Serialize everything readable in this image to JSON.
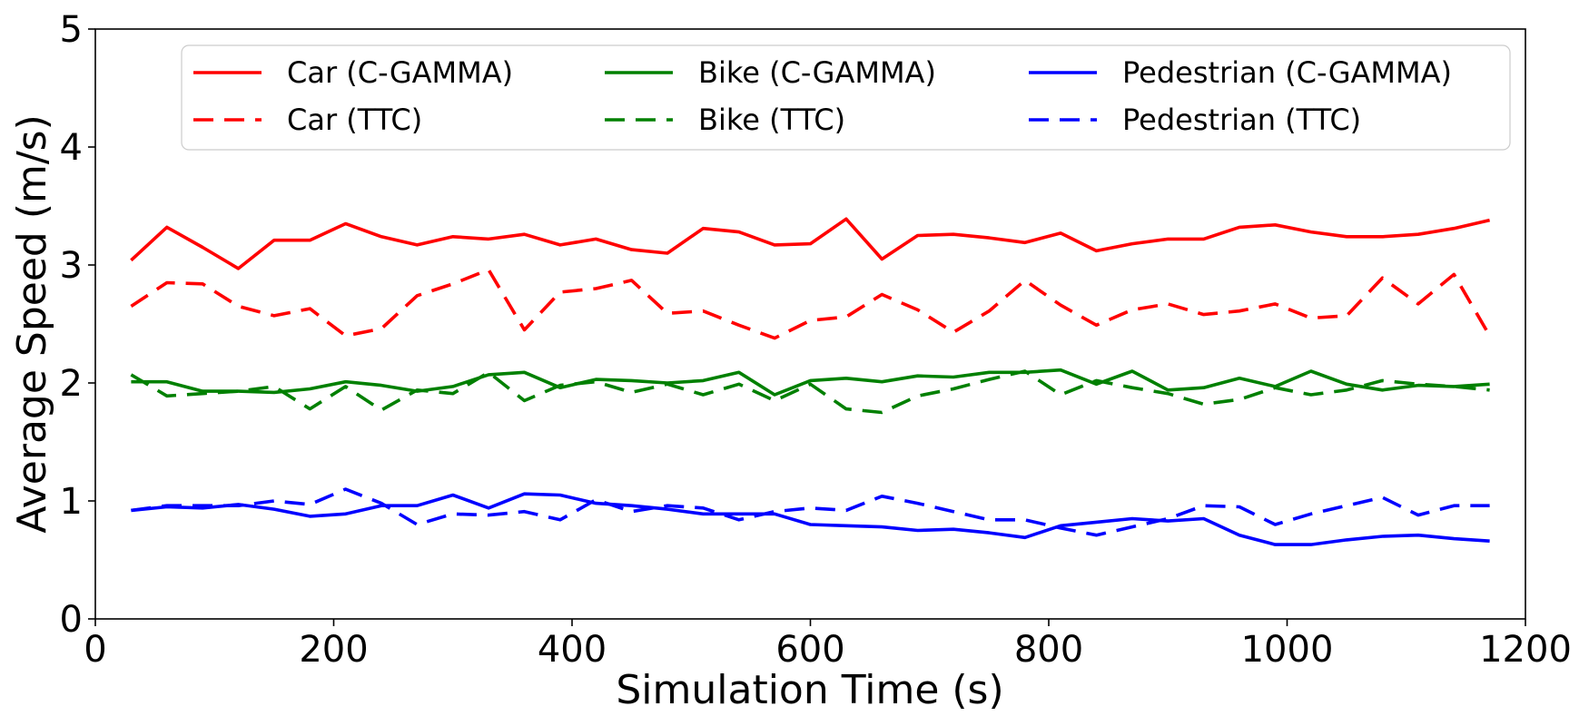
{
  "chart_data": {
    "type": "line",
    "title": "",
    "xlabel": "Simulation Time (s)",
    "ylabel": "Average Speed (m/s)",
    "xlim": [
      0,
      1200
    ],
    "ylim": [
      0,
      5
    ],
    "xticks": [
      0,
      200,
      400,
      600,
      800,
      1000,
      1200
    ],
    "yticks": [
      0,
      1,
      2,
      3,
      4,
      5
    ],
    "grid": false,
    "legend_position": "top",
    "x": [
      30,
      60,
      90,
      120,
      150,
      180,
      210,
      240,
      270,
      300,
      330,
      360,
      390,
      420,
      450,
      480,
      510,
      540,
      570,
      600,
      630,
      660,
      690,
      720,
      750,
      780,
      810,
      840,
      870,
      900,
      930,
      960,
      990,
      1020,
      1050,
      1080,
      1110,
      1140,
      1170
    ],
    "series": [
      {
        "name": "Car (C-GAMMA)",
        "color": "#ff0000",
        "dash": "solid",
        "values": [
          3.04,
          3.32,
          3.15,
          2.97,
          3.21,
          3.21,
          3.35,
          3.24,
          3.17,
          3.24,
          3.22,
          3.26,
          3.17,
          3.22,
          3.13,
          3.1,
          3.31,
          3.28,
          3.17,
          3.18,
          3.39,
          3.05,
          3.25,
          3.26,
          3.23,
          3.19,
          3.27,
          3.12,
          3.18,
          3.22,
          3.22,
          3.32,
          3.34,
          3.28,
          3.24,
          3.24,
          3.26,
          3.31,
          3.38
        ]
      },
      {
        "name": "Car (TTC)",
        "color": "#ff0000",
        "dash": "dashed",
        "values": [
          2.65,
          2.85,
          2.84,
          2.65,
          2.57,
          2.63,
          2.4,
          2.46,
          2.74,
          2.84,
          2.96,
          2.45,
          2.77,
          2.8,
          2.87,
          2.59,
          2.61,
          2.49,
          2.38,
          2.53,
          2.56,
          2.75,
          2.62,
          2.43,
          2.61,
          2.87,
          2.66,
          2.49,
          2.62,
          2.67,
          2.58,
          2.61,
          2.67,
          2.55,
          2.57,
          2.89,
          2.67,
          2.92,
          2.4
        ]
      },
      {
        "name": "Bike (C-GAMMA)",
        "color": "#008000",
        "dash": "solid",
        "values": [
          2.01,
          2.01,
          1.93,
          1.93,
          1.92,
          1.95,
          2.01,
          1.98,
          1.93,
          1.97,
          2.07,
          2.09,
          1.96,
          2.03,
          2.02,
          2.0,
          2.02,
          2.09,
          1.9,
          2.02,
          2.04,
          2.01,
          2.06,
          2.05,
          2.09,
          2.09,
          2.11,
          1.99,
          2.1,
          1.94,
          1.96,
          2.04,
          1.97,
          2.1,
          1.99,
          1.94,
          1.98,
          1.97,
          1.99
        ]
      },
      {
        "name": "Bike (TTC)",
        "color": "#008000",
        "dash": "dashed",
        "values": [
          2.07,
          1.89,
          1.91,
          1.93,
          1.97,
          1.78,
          1.97,
          1.77,
          1.94,
          1.91,
          2.09,
          1.85,
          1.98,
          2.01,
          1.92,
          1.99,
          1.9,
          1.99,
          1.85,
          1.99,
          1.78,
          1.75,
          1.89,
          1.95,
          2.03,
          2.1,
          1.9,
          2.02,
          1.96,
          1.91,
          1.82,
          1.86,
          1.96,
          1.9,
          1.94,
          2.02,
          1.99,
          1.97,
          1.94
        ]
      },
      {
        "name": "Pedestrian (C-GAMMA)",
        "color": "#0000ff",
        "dash": "solid",
        "values": [
          0.92,
          0.95,
          0.94,
          0.97,
          0.93,
          0.87,
          0.89,
          0.96,
          0.96,
          1.05,
          0.94,
          1.06,
          1.05,
          0.98,
          0.96,
          0.93,
          0.89,
          0.89,
          0.89,
          0.8,
          0.79,
          0.78,
          0.75,
          0.76,
          0.73,
          0.69,
          0.79,
          0.82,
          0.85,
          0.83,
          0.85,
          0.71,
          0.63,
          0.63,
          0.67,
          0.7,
          0.71,
          0.68,
          0.66
        ]
      },
      {
        "name": "Pedestrian (TTC)",
        "color": "#0000ff",
        "dash": "dashed",
        "values": [
          0.92,
          0.96,
          0.96,
          0.96,
          1.0,
          0.97,
          1.1,
          0.98,
          0.8,
          0.89,
          0.88,
          0.91,
          0.84,
          1.01,
          0.91,
          0.96,
          0.94,
          0.84,
          0.91,
          0.94,
          0.92,
          1.04,
          0.98,
          0.91,
          0.84,
          0.84,
          0.77,
          0.71,
          0.78,
          0.85,
          0.96,
          0.95,
          0.8,
          0.89,
          0.96,
          1.03,
          0.88,
          0.96,
          0.96
        ]
      }
    ]
  }
}
